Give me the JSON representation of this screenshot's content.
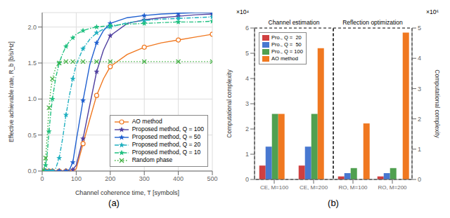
{
  "chart_data": [
    {
      "type": "line",
      "xlabel": "Channel coherence time, T [symbols]",
      "ylabel": "Effective achievable rate, R_b [b/s/Hz]",
      "x": [
        1,
        5,
        10,
        15,
        20,
        25,
        30,
        40,
        50,
        60,
        70,
        80,
        90,
        100,
        120,
        140,
        160,
        180,
        200,
        250,
        300,
        350,
        400,
        450,
        500
      ],
      "series": [
        {
          "name": "AO method",
          "color": "#f07820",
          "marker": "circle",
          "line_style": "solid",
          "values": [
            0.0,
            0.0,
            0.0,
            0.0,
            0.0,
            0.0,
            0.0,
            0.0,
            0.0,
            0.0,
            0.0,
            0.0,
            0.0,
            0.03,
            0.38,
            0.72,
            1.05,
            1.28,
            1.45,
            1.62,
            1.72,
            1.78,
            1.82,
            1.86,
            1.9
          ]
        },
        {
          "name": "Proposed method, Q = 100",
          "color": "#5040a0",
          "marker": "star",
          "line_style": "solid",
          "values": [
            0.0,
            0.0,
            0.0,
            0.0,
            0.0,
            0.0,
            0.0,
            0.0,
            0.0,
            0.0,
            0.0,
            0.0,
            0.02,
            0.08,
            0.45,
            0.92,
            1.38,
            1.68,
            1.88,
            2.05,
            2.1,
            2.13,
            2.15,
            2.17,
            2.18
          ]
        },
        {
          "name": "Proposed method, Q = 50",
          "color": "#2060d0",
          "marker": "star",
          "line_style": "solid",
          "values": [
            0.0,
            0.0,
            0.0,
            0.0,
            0.0,
            0.0,
            0.0,
            0.0,
            0.0,
            0.0,
            0.0,
            0.02,
            0.12,
            0.42,
            0.98,
            1.48,
            1.78,
            1.95,
            2.05,
            2.13,
            2.16,
            2.18,
            2.19,
            2.2,
            2.2
          ]
        },
        {
          "name": "Proposed method, Q = 20",
          "color": "#20b0c0",
          "marker": "star",
          "line_style": "dashdot",
          "values": [
            0.0,
            0.0,
            0.0,
            0.0,
            0.0,
            0.0,
            0.0,
            0.04,
            0.18,
            0.45,
            0.78,
            1.05,
            1.28,
            1.48,
            1.7,
            1.83,
            1.92,
            1.97,
            2.0,
            2.06,
            2.09,
            2.11,
            2.12,
            2.13,
            2.14
          ]
        },
        {
          "name": "Proposed method, Q = 10",
          "color": "#20c080",
          "marker": "star",
          "line_style": "dashdot",
          "values": [
            0.0,
            0.02,
            0.08,
            0.25,
            0.55,
            0.8,
            1.0,
            1.3,
            1.5,
            1.63,
            1.73,
            1.8,
            1.85,
            1.9,
            1.95,
            1.98,
            2.0,
            2.01,
            2.02,
            2.04,
            2.05,
            2.06,
            2.07,
            2.07,
            2.08
          ]
        },
        {
          "name": "Random phase",
          "color": "#40b040",
          "marker": "x",
          "line_style": "dotted",
          "values": [
            0.0,
            0.04,
            0.18,
            0.5,
            0.88,
            1.12,
            1.28,
            1.44,
            1.5,
            1.52,
            1.52,
            1.52,
            1.52,
            1.52,
            1.52,
            1.52,
            1.52,
            1.52,
            1.52,
            1.52,
            1.52,
            1.52,
            1.52,
            1.52,
            1.52
          ]
        }
      ],
      "xlim": [
        0,
        500
      ],
      "ylim": [
        0,
        2.2
      ],
      "xticks": [
        0,
        100,
        200,
        300,
        400,
        500
      ],
      "yticks": [
        {
          "value": 0,
          "label": "0.0"
        },
        0.5,
        {
          "value": 1,
          "label": "1.0"
        },
        1.5,
        {
          "value": 2,
          "label": "2.0"
        }
      ],
      "grid": true,
      "legend": "lower right",
      "annotations": [
        "(a)"
      ]
    },
    {
      "type": "bar",
      "ylabel": "Computational complexity",
      "y2label": "Computational complexity",
      "categories": [
        "CE, M=100",
        "CE, M=200",
        "RO, M=100",
        "RO, M=200"
      ],
      "series": [
        {
          "name": "Pro., Q =  20",
          "color": "#d04040",
          "values": [
            0.55,
            0.55,
            0.12,
            0.12
          ]
        },
        {
          "name": "Pro., Q =  50",
          "color": "#4878d0",
          "values": [
            1.3,
            1.3,
            0.25,
            0.25
          ]
        },
        {
          "name": "Pro., Q = 100",
          "color": "#50a050",
          "values": [
            2.6,
            2.6,
            0.45,
            0.45
          ]
        },
        {
          "name": "AO method",
          "color": "#f07820",
          "values": [
            2.6,
            5.2,
            null,
            null
          ]
        },
        {
          "name": "AO method",
          "color": "#f07820",
          "axis": "y2",
          "values": [
            null,
            null,
            1.85,
            4.85
          ]
        }
      ],
      "ylim": [
        0,
        6
      ],
      "yticks": [
        0,
        1,
        2,
        3,
        4,
        5,
        6
      ],
      "y2lim": [
        0,
        5
      ],
      "y2ticks": [
        0,
        1,
        2,
        3,
        4,
        5
      ],
      "grid": false,
      "legend": "upper left",
      "annotations": [
        "Channel estimation",
        "Reflection optimization",
        "×10⁴",
        "×10⁶",
        "(b)"
      ]
    }
  ]
}
